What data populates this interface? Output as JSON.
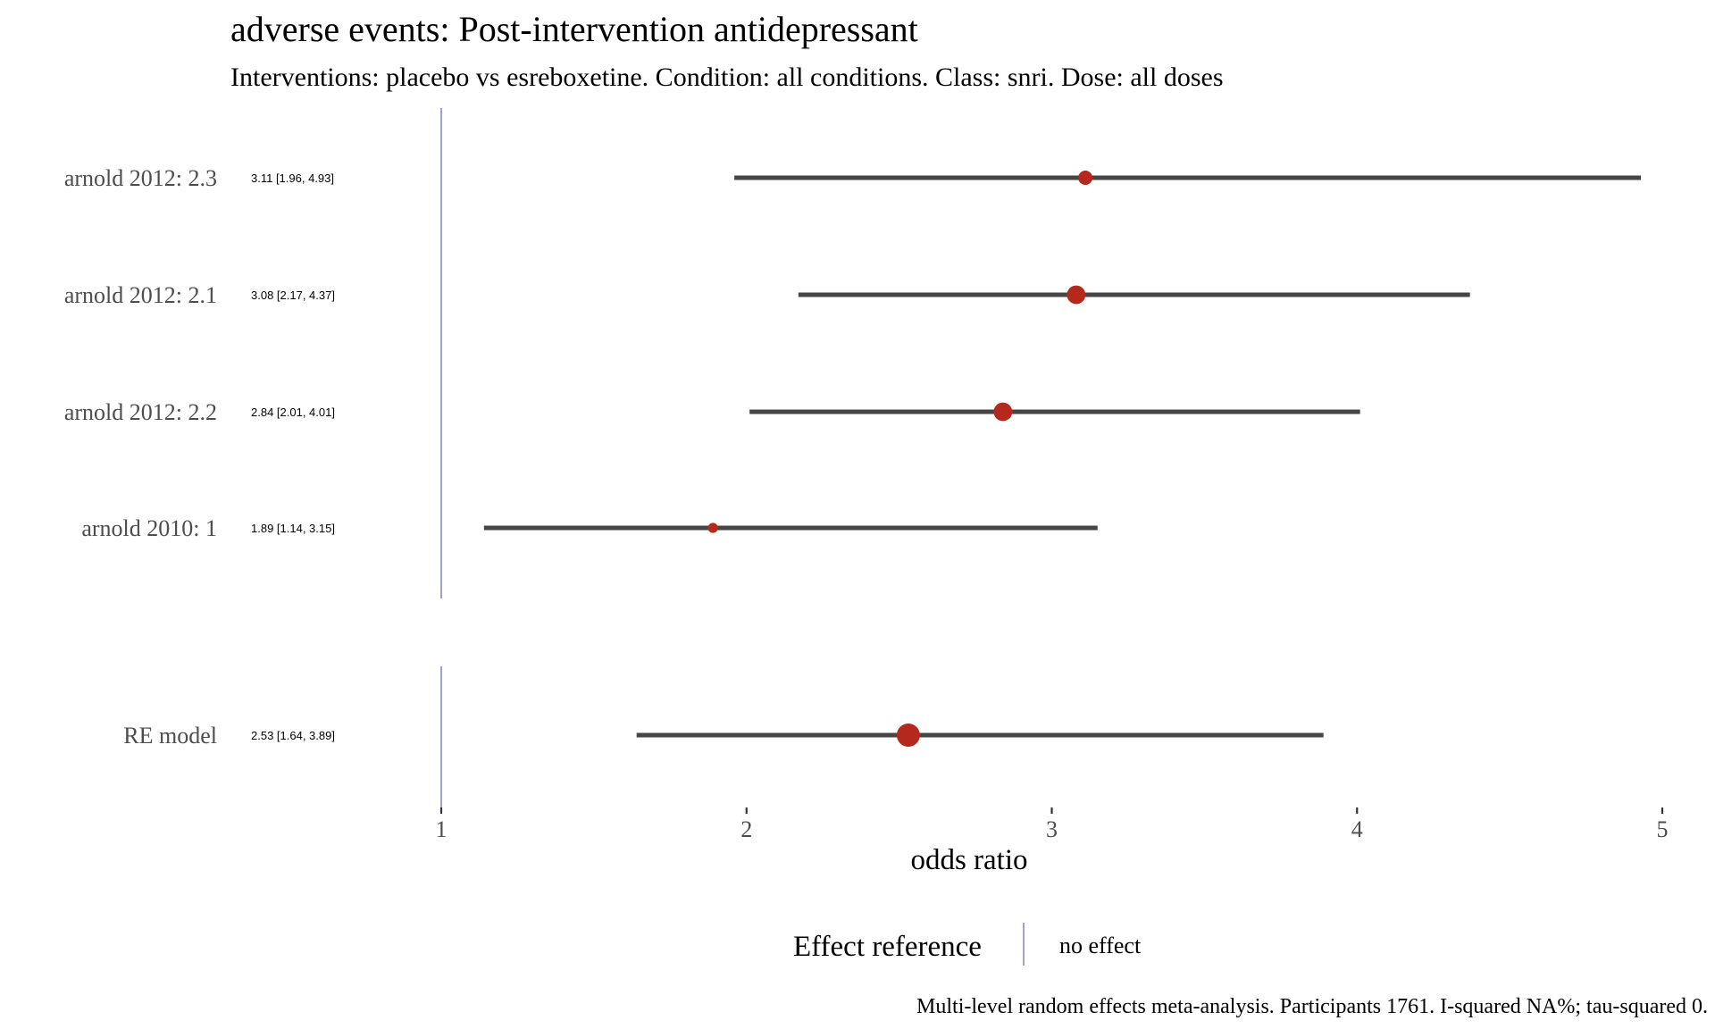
{
  "chart_data": {
    "type": "forest",
    "title": "adverse events: Post-intervention antidepressant",
    "subtitle": "Interventions: placebo vs esreboxetine. Condition: all conditions. Class: snri. Dose: all doses",
    "xlabel": "odds ratio",
    "xlim": [
      1,
      5
    ],
    "x_ticks": [
      "1",
      "2",
      "3",
      "4",
      "5"
    ],
    "reference_line_value": 1,
    "reference_line_color": "#7b7bb0",
    "point_color": "#b5281c",
    "interval_color": "#454545",
    "studies": [
      {
        "label": "arnold 2012: 2.3",
        "estimate": 3.11,
        "ci_low": 1.96,
        "ci_high": 4.93,
        "text": "3.11 [1.96, 4.93]",
        "weight": 0.25
      },
      {
        "label": "arnold 2012: 2.1",
        "estimate": 3.08,
        "ci_low": 2.17,
        "ci_high": 4.37,
        "text": "3.08 [2.17, 4.37]",
        "weight": 0.4
      },
      {
        "label": "arnold 2012: 2.2",
        "estimate": 2.84,
        "ci_low": 2.01,
        "ci_high": 4.01,
        "text": "2.84 [2.01, 4.01]",
        "weight": 0.4
      },
      {
        "label": "arnold 2010: 1",
        "estimate": 1.89,
        "ci_low": 1.14,
        "ci_high": 3.15,
        "text": "1.89 [1.14, 3.15]",
        "weight": 0.1
      }
    ],
    "summary": {
      "label": "RE model",
      "estimate": 2.53,
      "ci_low": 1.64,
      "ci_high": 3.89,
      "text": "2.53 [1.64, 3.89]"
    },
    "legend": {
      "title": "Effect reference",
      "label": "no effect"
    },
    "caption": "Multi-level random effects meta-analysis. Participants 1761. I-squared NA%; tau-squared 0."
  }
}
